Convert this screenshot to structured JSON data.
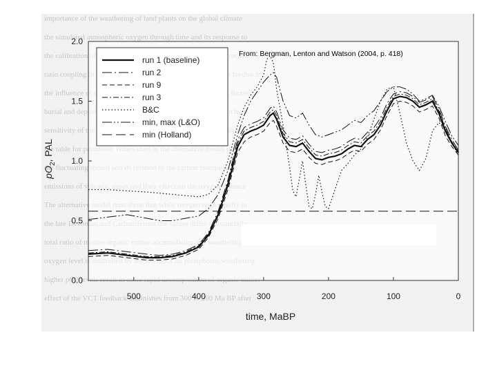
{
  "page_background": "#ffffff",
  "chart_data": {
    "type": "line",
    "title": "",
    "citation": "From: Bergman, Lenton and Watson (2004, p. 418)",
    "xlabel": "time, MaBP",
    "ylabel_main": "pO",
    "ylabel_sub": "2",
    "ylabel_rest": ", PAL",
    "xlim": [
      0,
      570
    ],
    "ylim": [
      0,
      2.0
    ],
    "x_reversed": true,
    "x_ticks": [
      500,
      400,
      300,
      200,
      100,
      0
    ],
    "y_ticks": [
      0.0,
      0.5,
      1.0,
      1.5,
      2.0
    ],
    "y_tick_labels": [
      "0.0",
      "0.5",
      "1.0",
      "1.5",
      "2.0"
    ],
    "grid": false,
    "legend_position": "top-left",
    "series": [
      {
        "name": "run 1 (baseline)",
        "style": "solid",
        "width": 2.2,
        "x": [
          570,
          540,
          510,
          480,
          460,
          440,
          420,
          400,
          385,
          370,
          355,
          340,
          330,
          320,
          310,
          300,
          290,
          285,
          280,
          270,
          260,
          250,
          240,
          230,
          220,
          210,
          200,
          190,
          180,
          170,
          160,
          150,
          140,
          130,
          120,
          110,
          100,
          90,
          80,
          70,
          60,
          50,
          40,
          30,
          20,
          10,
          0
        ],
        "y": [
          0.22,
          0.23,
          0.21,
          0.19,
          0.19,
          0.2,
          0.23,
          0.28,
          0.38,
          0.55,
          0.8,
          1.12,
          1.22,
          1.25,
          1.27,
          1.3,
          1.38,
          1.4,
          1.35,
          1.2,
          1.13,
          1.12,
          1.15,
          1.08,
          1.02,
          1.01,
          1.03,
          1.04,
          1.06,
          1.1,
          1.13,
          1.12,
          1.18,
          1.22,
          1.3,
          1.42,
          1.52,
          1.54,
          1.53,
          1.5,
          1.45,
          1.47,
          1.5,
          1.4,
          1.25,
          1.15,
          1.07
        ]
      },
      {
        "name": "run 2",
        "style": "longdash-dot",
        "width": 1,
        "x": [
          570,
          540,
          510,
          480,
          460,
          440,
          420,
          400,
          385,
          370,
          355,
          340,
          330,
          320,
          310,
          300,
          290,
          285,
          280,
          270,
          260,
          250,
          240,
          230,
          220,
          210,
          200,
          190,
          180,
          170,
          160,
          150,
          140,
          130,
          120,
          110,
          100,
          90,
          80,
          70,
          60,
          50,
          40,
          30,
          20,
          10,
          0
        ],
        "y": [
          0.25,
          0.26,
          0.24,
          0.22,
          0.21,
          0.22,
          0.25,
          0.3,
          0.4,
          0.58,
          0.84,
          1.18,
          1.28,
          1.31,
          1.33,
          1.36,
          1.44,
          1.46,
          1.41,
          1.26,
          1.19,
          1.18,
          1.21,
          1.14,
          1.08,
          1.07,
          1.09,
          1.1,
          1.12,
          1.16,
          1.19,
          1.18,
          1.24,
          1.28,
          1.36,
          1.48,
          1.56,
          1.58,
          1.57,
          1.54,
          1.49,
          1.51,
          1.54,
          1.44,
          1.29,
          1.18,
          1.09
        ]
      },
      {
        "name": "run 9",
        "style": "dash",
        "width": 1,
        "x": [
          570,
          540,
          510,
          480,
          460,
          440,
          420,
          400,
          385,
          370,
          355,
          340,
          330,
          320,
          310,
          300,
          290,
          285,
          280,
          270,
          260,
          250,
          240,
          230,
          220,
          210,
          200,
          190,
          180,
          170,
          160,
          150,
          140,
          130,
          120,
          110,
          100,
          90,
          80,
          70,
          60,
          50,
          40,
          30,
          20,
          10,
          0
        ],
        "y": [
          0.2,
          0.21,
          0.19,
          0.17,
          0.17,
          0.18,
          0.21,
          0.26,
          0.36,
          0.52,
          0.76,
          1.07,
          1.16,
          1.2,
          1.22,
          1.25,
          1.32,
          1.34,
          1.29,
          1.15,
          1.08,
          1.07,
          1.1,
          1.03,
          0.98,
          0.97,
          0.99,
          1.0,
          1.02,
          1.06,
          1.09,
          1.08,
          1.14,
          1.18,
          1.26,
          1.38,
          1.48,
          1.5,
          1.49,
          1.46,
          1.41,
          1.43,
          1.46,
          1.36,
          1.21,
          1.12,
          1.05
        ]
      },
      {
        "name": "run 3",
        "style": "dash-dot",
        "width": 1,
        "x": [
          570,
          540,
          510,
          480,
          460,
          440,
          420,
          400,
          385,
          370,
          355,
          340,
          330,
          320,
          310,
          300,
          290,
          285,
          280,
          270,
          260,
          250,
          240,
          230,
          220,
          210,
          200,
          190,
          180,
          170,
          160,
          150,
          140,
          130,
          120,
          110,
          100,
          90,
          80,
          70,
          60,
          50,
          40,
          30,
          20,
          10,
          0
        ],
        "y": [
          0.23,
          0.24,
          0.22,
          0.2,
          0.2,
          0.21,
          0.24,
          0.29,
          0.39,
          0.56,
          0.82,
          1.15,
          1.25,
          1.28,
          1.3,
          1.33,
          1.41,
          1.43,
          1.38,
          1.23,
          1.16,
          1.15,
          1.18,
          1.11,
          1.05,
          1.04,
          1.06,
          1.07,
          1.09,
          1.13,
          1.16,
          1.15,
          1.21,
          1.25,
          1.33,
          1.45,
          1.54,
          1.56,
          1.55,
          1.52,
          1.47,
          1.49,
          1.52,
          1.42,
          1.27,
          1.16,
          1.08
        ]
      },
      {
        "name": "B&C",
        "style": "dot",
        "width": 1.2,
        "x": [
          570,
          540,
          510,
          480,
          460,
          440,
          420,
          400,
          385,
          370,
          355,
          340,
          330,
          320,
          310,
          300,
          295,
          290,
          285,
          280,
          270,
          260,
          255,
          250,
          245,
          240,
          235,
          230,
          225,
          220,
          215,
          210,
          205,
          200,
          190,
          180,
          170,
          160,
          150,
          140,
          130,
          120,
          110,
          100,
          90,
          80,
          70,
          60,
          50,
          40,
          30,
          20,
          10,
          0
        ],
        "y": [
          0.76,
          0.76,
          0.75,
          0.74,
          0.73,
          0.72,
          0.71,
          0.7,
          0.72,
          0.8,
          1.0,
          1.3,
          1.45,
          1.55,
          1.62,
          1.72,
          1.85,
          1.88,
          1.82,
          1.6,
          1.3,
          0.95,
          0.75,
          0.7,
          0.85,
          1.0,
          0.8,
          0.62,
          0.6,
          0.72,
          0.88,
          0.74,
          0.62,
          0.6,
          0.76,
          0.92,
          0.98,
          1.05,
          1.1,
          1.2,
          1.35,
          1.5,
          1.6,
          1.62,
          1.4,
          1.15,
          1.0,
          0.92,
          1.02,
          1.25,
          1.32,
          1.28,
          1.15,
          1.05
        ]
      },
      {
        "name": "min, max (L&O)",
        "style": "longdash-double-dot",
        "width": 1,
        "x": [
          570,
          540,
          510,
          480,
          460,
          440,
          420,
          400,
          385,
          370,
          355,
          340,
          330,
          320,
          310,
          300,
          290,
          285,
          280,
          270,
          260,
          250,
          240,
          230,
          220,
          210,
          200,
          190,
          180,
          170,
          160,
          150,
          140,
          130,
          120,
          110,
          100,
          90,
          80,
          70,
          60,
          50,
          40,
          30,
          20,
          10,
          0
        ],
        "y": [
          0.51,
          0.53,
          0.55,
          0.52,
          0.5,
          0.5,
          0.52,
          0.54,
          0.6,
          0.72,
          0.92,
          1.22,
          1.38,
          1.5,
          1.58,
          1.66,
          1.72,
          1.74,
          1.7,
          1.5,
          1.38,
          1.36,
          1.4,
          1.3,
          1.22,
          1.2,
          1.22,
          1.24,
          1.26,
          1.3,
          1.34,
          1.32,
          1.38,
          1.42,
          1.5,
          1.58,
          1.62,
          1.62,
          1.6,
          1.56,
          1.5,
          1.52,
          1.55,
          1.46,
          1.33,
          1.21,
          1.13
        ]
      },
      {
        "name": "min (Holland)",
        "style": "longdash",
        "width": 1,
        "x": [
          570,
          0
        ],
        "y": [
          0.58,
          0.58
        ]
      }
    ]
  },
  "background_text": [
    "importance of the weathering of land plants on the global climate",
    "the simulated atmospheric oxygen through time and its response to",
    "the calibration of organic carbon burial against the observed record",
    "ratio coupling in the marine system and the phosphorus cycle feedback",
    "the influence of changing silicate weathering rates on carbon fluxes",
    "burial and deposition of organic carbon in sediments is shown here",
    "sensitivity of the predicted oxygen levels to the assumed uplift rate",
    "see table for parameter values used in the alternative model runs",
    "the fluctuating record and its relation to the carbon isotope data",
    "emissions of volcanic gases and their effect on the oxygen balance",
    "The alternative model runs show that while oxygen rises rapidly in",
    "the late Devonian and Carboniferous the values differ substantially",
    "total ratio of marine organic matter accumulation and weathering",
    "oxygen level is controlled by the feedback on phosphorus weathering",
    "higher pO2 levels result in more rapid decomposition of organic matter",
    "effect of the VCT feedback diminishes from 300 to 200 Ma BP after"
  ]
}
